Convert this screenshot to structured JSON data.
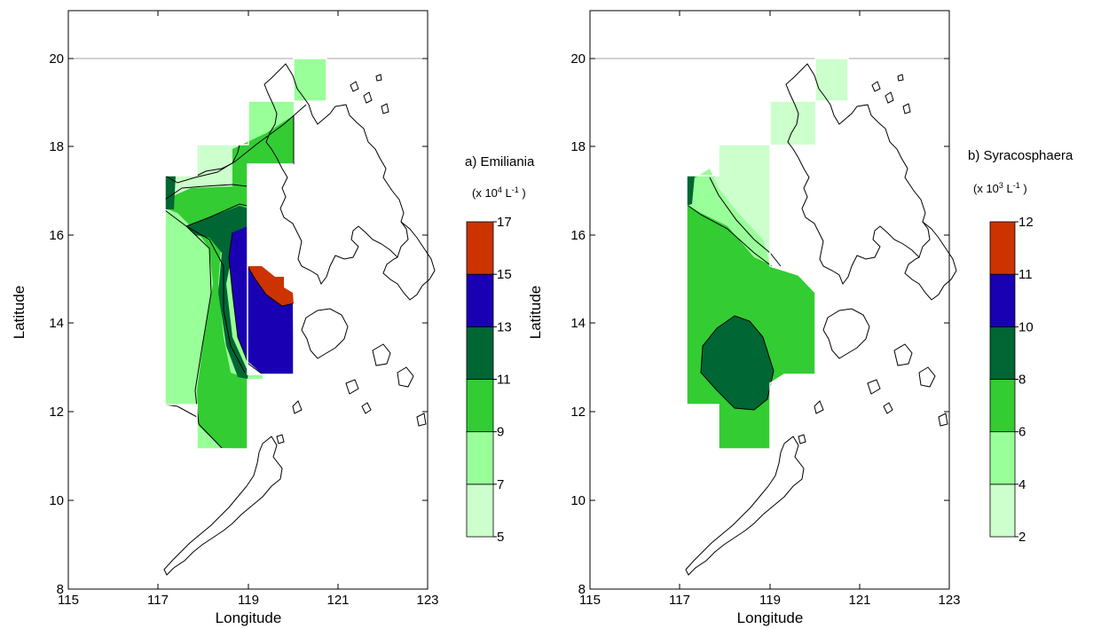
{
  "chart_data": [
    {
      "type": "heatmap",
      "panel_label": "a) Emiliania",
      "units": {
        "prefix": "(x 10",
        "exp": "4",
        "mid": " L",
        "exp2": "-1",
        "suffix": " )"
      },
      "xlabel": "Longitude",
      "ylabel": "Latitude",
      "xlim": [
        115,
        123
      ],
      "ylim": [
        8,
        21
      ],
      "x_ticks": [
        "115",
        "117",
        "119",
        "121",
        "123"
      ],
      "y_ticks": [
        "8",
        "10",
        "12",
        "14",
        "16",
        "18",
        "20"
      ],
      "colorbar": {
        "levels": [
          5,
          7,
          9,
          11,
          13,
          15,
          17
        ],
        "labels": [
          "5",
          "7",
          "9",
          "11",
          "13",
          "15",
          "17"
        ],
        "colors": [
          "#ccffcc",
          "#99ff99",
          "#33cc33",
          "#006633",
          "#1a00b3",
          "#cc3300"
        ]
      }
    },
    {
      "type": "heatmap",
      "panel_label": "b) Syracosphaera",
      "units": {
        "prefix": "(x 10",
        "exp": "3",
        "mid": " L",
        "exp2": "-1",
        "suffix": " )"
      },
      "xlabel": "Longitude",
      "ylabel": "Latitude",
      "xlim": [
        115,
        123
      ],
      "ylim": [
        8,
        21
      ],
      "x_ticks": [
        "115",
        "117",
        "119",
        "121",
        "123"
      ],
      "y_ticks": [
        "8",
        "10",
        "12",
        "14",
        "16",
        "18",
        "20"
      ],
      "colorbar": {
        "levels": [
          2,
          4,
          6,
          8,
          10,
          11,
          12
        ],
        "labels": [
          "2",
          "4",
          "6",
          "8",
          "10",
          "11",
          "12"
        ],
        "colors": [
          "#ccffcc",
          "#99ff99",
          "#33cc33",
          "#006633",
          "#1a00b3",
          "#cc3300"
        ]
      }
    }
  ]
}
